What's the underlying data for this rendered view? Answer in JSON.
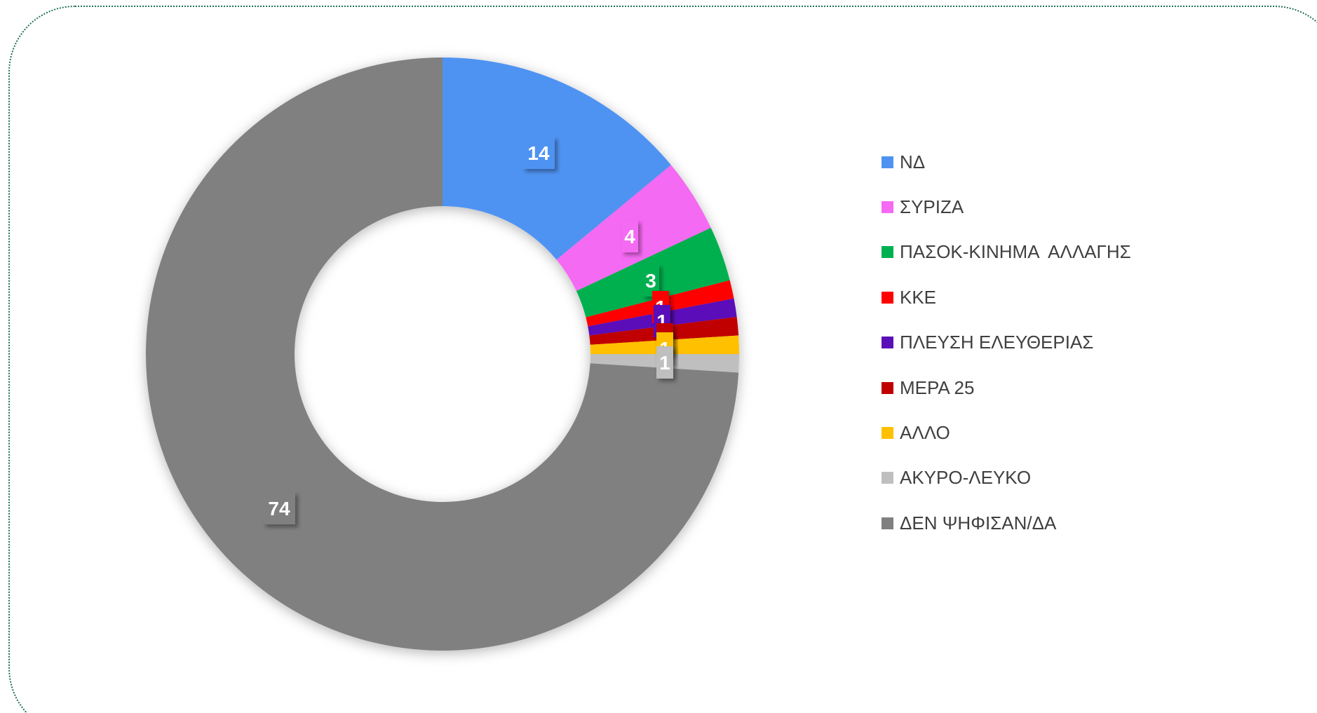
{
  "chart_data": {
    "type": "pie",
    "donut": true,
    "title": "",
    "legend_position": "right",
    "categories": [
      "ΝΔ",
      "ΣΥΡΙΖΑ",
      "ΠΑΣΟΚ-ΚΙΝΗΜΑ  ΑΛΛΑΓΗΣ",
      "ΚΚΕ",
      "ΠΛΕΥΣΗ ΕΛΕΥΘΕΡΙΑΣ",
      "ΜΕΡΑ 25",
      "ΑΛΛΟ",
      "ΑΚΥΡΟ-ΛΕΥΚΟ",
      "ΔΕΝ ΨΗΦΙΣΑΝ/ΔΑ"
    ],
    "values": [
      14,
      4,
      3,
      1,
      1,
      1,
      1,
      1,
      74
    ],
    "slices": [
      {
        "label": "ΝΔ",
        "value": 14,
        "data_label": "14",
        "color": "#4f93f2"
      },
      {
        "label": "ΣΥΡΙΖΑ",
        "value": 4,
        "data_label": "4",
        "color": "#f46af2"
      },
      {
        "label": "ΠΑΣΟΚ-ΚΙΝΗΜΑ  ΑΛΛΑΓΗΣ",
        "value": 3,
        "data_label": "3",
        "color": "#00b050"
      },
      {
        "label": "ΚΚΕ",
        "value": 1,
        "data_label": "1",
        "color": "#ff0000"
      },
      {
        "label": "ΠΛΕΥΣΗ ΕΛΕΥΘΕΡΙΑΣ",
        "value": 1,
        "data_label": "1",
        "color": "#5a10b8"
      },
      {
        "label": "ΜΕΡΑ 25",
        "value": 1,
        "data_label": "1",
        "color": "#c00000"
      },
      {
        "label": "ΑΛΛΟ",
        "value": 1,
        "data_label": "1",
        "color": "#ffc000"
      },
      {
        "label": "ΑΚΥΡΟ-ΛΕΥΚΟ",
        "value": 1,
        "data_label": "1",
        "color": "#bfbfbf"
      },
      {
        "label": "ΔΕΝ ΨΗΦΙΣΑΝ/ΔΑ",
        "value": 74,
        "data_label": "74",
        "color": "#808080"
      }
    ]
  }
}
